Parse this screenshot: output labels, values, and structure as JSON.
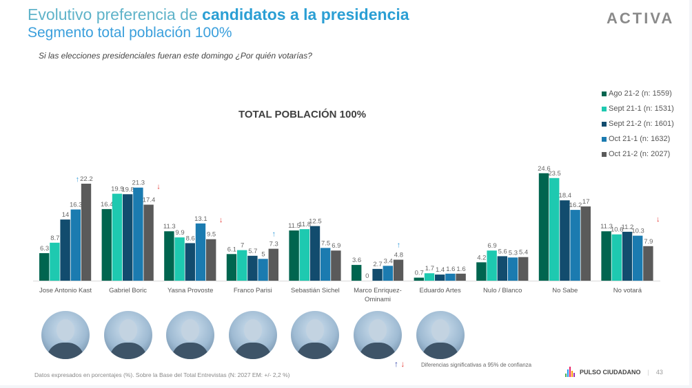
{
  "header": {
    "title_part1": "Evolutivo preferencia de ",
    "title_part2": "candidatos a la presidencia",
    "subtitle": "Segmento total población 100%",
    "question": "Si las elecciones presidenciales fueran este domingo ¿Por quién votarías?",
    "logo": "ACTIVA"
  },
  "chart_data": {
    "type": "bar",
    "title": "TOTAL POBLACIÓN 100%",
    "xlabel": "",
    "ylabel": "",
    "ylim": [
      0,
      26
    ],
    "grid": false,
    "legend_position": "top-right",
    "categories": [
      "Jose Antonio Kast",
      "Gabriel Boric",
      "Yasna Provoste",
      "Franco Parisi",
      "Sebastián Sichel",
      "Marco Enriquez-Ominami",
      "Eduardo Artes",
      "Nulo / Blanco",
      "No Sabe",
      "No votará"
    ],
    "category_lines": [
      [
        "Jose Antonio Kast"
      ],
      [
        "Gabriel Boric"
      ],
      [
        "Yasna Provoste"
      ],
      [
        "Franco Parisi"
      ],
      [
        "Sebastián Sichel"
      ],
      [
        "Marco Enriquez-",
        "Ominami"
      ],
      [
        "Eduardo Artes"
      ],
      [
        "Nulo / Blanco"
      ],
      [
        "No Sabe"
      ],
      [
        "No votará"
      ]
    ],
    "series": [
      {
        "name": "Ago 21-2 (n: 1559)",
        "color": "#00654f",
        "values": [
          6.3,
          16.4,
          11.3,
          6.1,
          11.5,
          3.6,
          0.7,
          4.2,
          24.6,
          11.3
        ]
      },
      {
        "name": "Sept 21-1 (n: 1531)",
        "color": "#1ec9b0",
        "values": [
          8.7,
          19.9,
          9.9,
          7,
          11.8,
          0,
          1.7,
          6.9,
          23.5,
          10.6
        ]
      },
      {
        "name": "Sept 21-2 (n: 1601)",
        "color": "#124c6e",
        "values": [
          14,
          19.8,
          8.6,
          5.7,
          12.5,
          2.7,
          1.4,
          5.6,
          18.4,
          11.2
        ]
      },
      {
        "name": "Oct 21-1 (n: 1632)",
        "color": "#1b7bb0",
        "values": [
          16.3,
          21.3,
          13.1,
          5,
          7.5,
          3.4,
          1.6,
          5.3,
          16.2,
          10.3
        ]
      },
      {
        "name": "Oct 21-2 (n: 2027)",
        "color": "#5a5a5a",
        "values": [
          22.2,
          17.4,
          9.5,
          7.3,
          6.9,
          4.8,
          1.6,
          5.4,
          17,
          7.9
        ]
      }
    ],
    "significance_markers": [
      {
        "category": "Jose Antonio Kast",
        "direction": "up"
      },
      {
        "category": "Gabriel Boric",
        "direction": "down"
      },
      {
        "category": "Yasna Provoste",
        "direction": "down"
      },
      {
        "category": "Franco Parisi",
        "direction": "up"
      },
      {
        "category": "Marco Enriquez-Ominami",
        "direction": "up"
      },
      {
        "category": "No votará",
        "direction": "down"
      }
    ],
    "marker_colors": {
      "up": "#3a9fdc",
      "down": "#e53935"
    }
  },
  "photos": [
    {
      "name": "jose-antonio-kast-photo"
    },
    {
      "name": "gabriel-boric-photo"
    },
    {
      "name": "yasna-provoste-photo"
    },
    {
      "name": "franco-parisi-photo"
    },
    {
      "name": "sebastian-sichel-photo"
    },
    {
      "name": "marco-enriquez-ominami-photo"
    },
    {
      "name": "eduardo-artes-photo"
    }
  ],
  "footer": {
    "note": "Datos expresados en porcentajes (%). Sobre la Base del Total Entrevistas (N: 2027  EM: +/- 2,2 %)",
    "significance_note": "Diferencias  significativas a 95% de confianza",
    "up_arrow": "↑",
    "down_arrow": "↓",
    "brand": "PULSO CIUDADANO",
    "separator": "|",
    "page_number": "43"
  }
}
